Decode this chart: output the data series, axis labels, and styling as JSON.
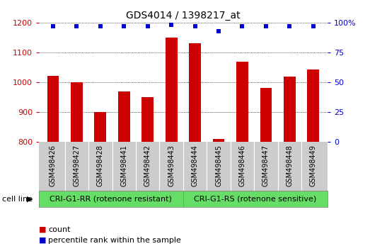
{
  "title": "GDS4014 / 1398217_at",
  "categories": [
    "GSM498426",
    "GSM498427",
    "GSM498428",
    "GSM498441",
    "GSM498442",
    "GSM498443",
    "GSM498444",
    "GSM498445",
    "GSM498446",
    "GSM498447",
    "GSM498448",
    "GSM498449"
  ],
  "bar_values": [
    1022,
    1000,
    900,
    968,
    950,
    1150,
    1130,
    810,
    1068,
    982,
    1020,
    1042
  ],
  "percentile_values": [
    97,
    97,
    97,
    97,
    97,
    98,
    97,
    93,
    97,
    97,
    97,
    97
  ],
  "bar_color": "#cc0000",
  "dot_color": "#0000cc",
  "ylim_left": [
    800,
    1200
  ],
  "ylim_right": [
    0,
    100
  ],
  "yticks_left": [
    800,
    900,
    1000,
    1100,
    1200
  ],
  "yticks_right": [
    0,
    25,
    50,
    75,
    100
  ],
  "group1_label": "CRI-G1-RR (rotenone resistant)",
  "group2_label": "CRI-G1-RS (rotenone sensitive)",
  "group1_count": 6,
  "group2_count": 6,
  "cell_line_label": "cell line",
  "legend_count_label": "count",
  "legend_percentile_label": "percentile rank within the sample",
  "group_color": "#66dd66",
  "bg_color": "#ffffff",
  "tick_area_color": "#cccccc",
  "bar_width": 0.5,
  "title_fontsize": 10,
  "tick_fontsize": 8,
  "label_fontsize": 7,
  "group_fontsize": 8,
  "legend_fontsize": 8
}
